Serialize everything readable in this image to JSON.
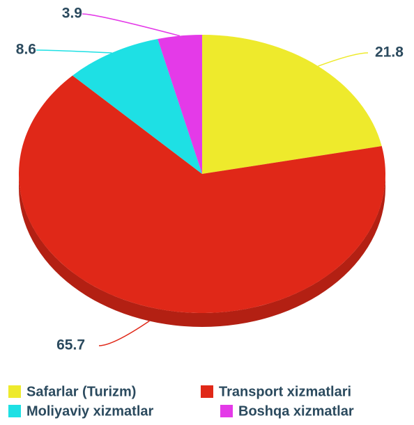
{
  "chart_data": {
    "type": "pie",
    "categories": [
      "Safarlar (Turizm)",
      "Transport xizmatlari",
      "Moliyaviy xizmatlar",
      "Boshqa xizmatlar"
    ],
    "values": [
      21.8,
      65.7,
      8.6,
      3.9
    ],
    "colors": [
      "#eeea2c",
      "#e02818",
      "#1ee0e4",
      "#e43ae8"
    ]
  }
}
